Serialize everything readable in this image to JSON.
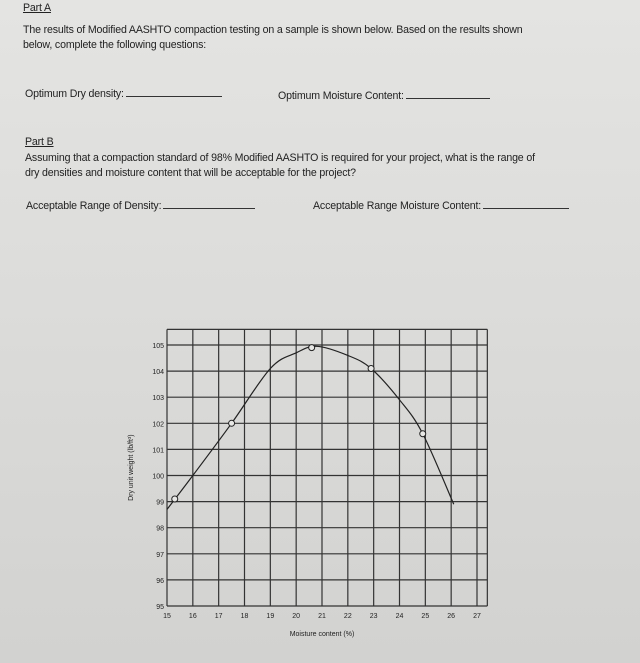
{
  "part_a": {
    "heading": "Part A",
    "line1": "The results of Modified AASHTO compaction testing on a sample is shown below.  Based on the results shown",
    "line2": "below, complete the following questions:",
    "q1_label": "Optimum Dry density:",
    "q2_label": "Optimum Moisture Content:"
  },
  "part_b": {
    "heading": "Part B",
    "line1": "Assuming that a compaction standard of 98% Modified AASHTO is required for your project, what is the range of",
    "line2": "dry densities and moisture content that will be acceptable  for the project?",
    "q1_label": "Acceptable Range of Density:",
    "q2_label": "Acceptable Range Moisture Content:"
  },
  "chart_data": {
    "type": "line",
    "title": "",
    "xlabel": "Moisture content (%)",
    "ylabel": "Dry unit weight (lb/ft³)",
    "xlim": [
      15,
      27
    ],
    "ylim": [
      95,
      105
    ],
    "xticks": [
      "15",
      "16",
      "17",
      "18",
      "19",
      "20",
      "21",
      "22",
      "23",
      "24",
      "25",
      "26",
      "27"
    ],
    "yticks": [
      "95",
      "96",
      "97",
      "98",
      "99",
      "100",
      "101",
      "102",
      "103",
      "104",
      "105"
    ],
    "grid": true,
    "points": [
      {
        "x": 15.3,
        "y": 99.1
      },
      {
        "x": 17.5,
        "y": 102.0
      },
      {
        "x": 20.6,
        "y": 104.9
      },
      {
        "x": 22.9,
        "y": 104.1
      },
      {
        "x": 24.9,
        "y": 101.6
      }
    ],
    "curve": [
      {
        "x": 15.0,
        "y": 98.7
      },
      {
        "x": 16.0,
        "y": 100.0
      },
      {
        "x": 17.5,
        "y": 102.0
      },
      {
        "x": 19.0,
        "y": 104.1
      },
      {
        "x": 20.0,
        "y": 104.7
      },
      {
        "x": 20.8,
        "y": 104.95
      },
      {
        "x": 22.0,
        "y": 104.6
      },
      {
        "x": 22.9,
        "y": 104.1
      },
      {
        "x": 24.0,
        "y": 102.9
      },
      {
        "x": 24.9,
        "y": 101.6
      },
      {
        "x": 26.1,
        "y": 98.9
      }
    ]
  }
}
